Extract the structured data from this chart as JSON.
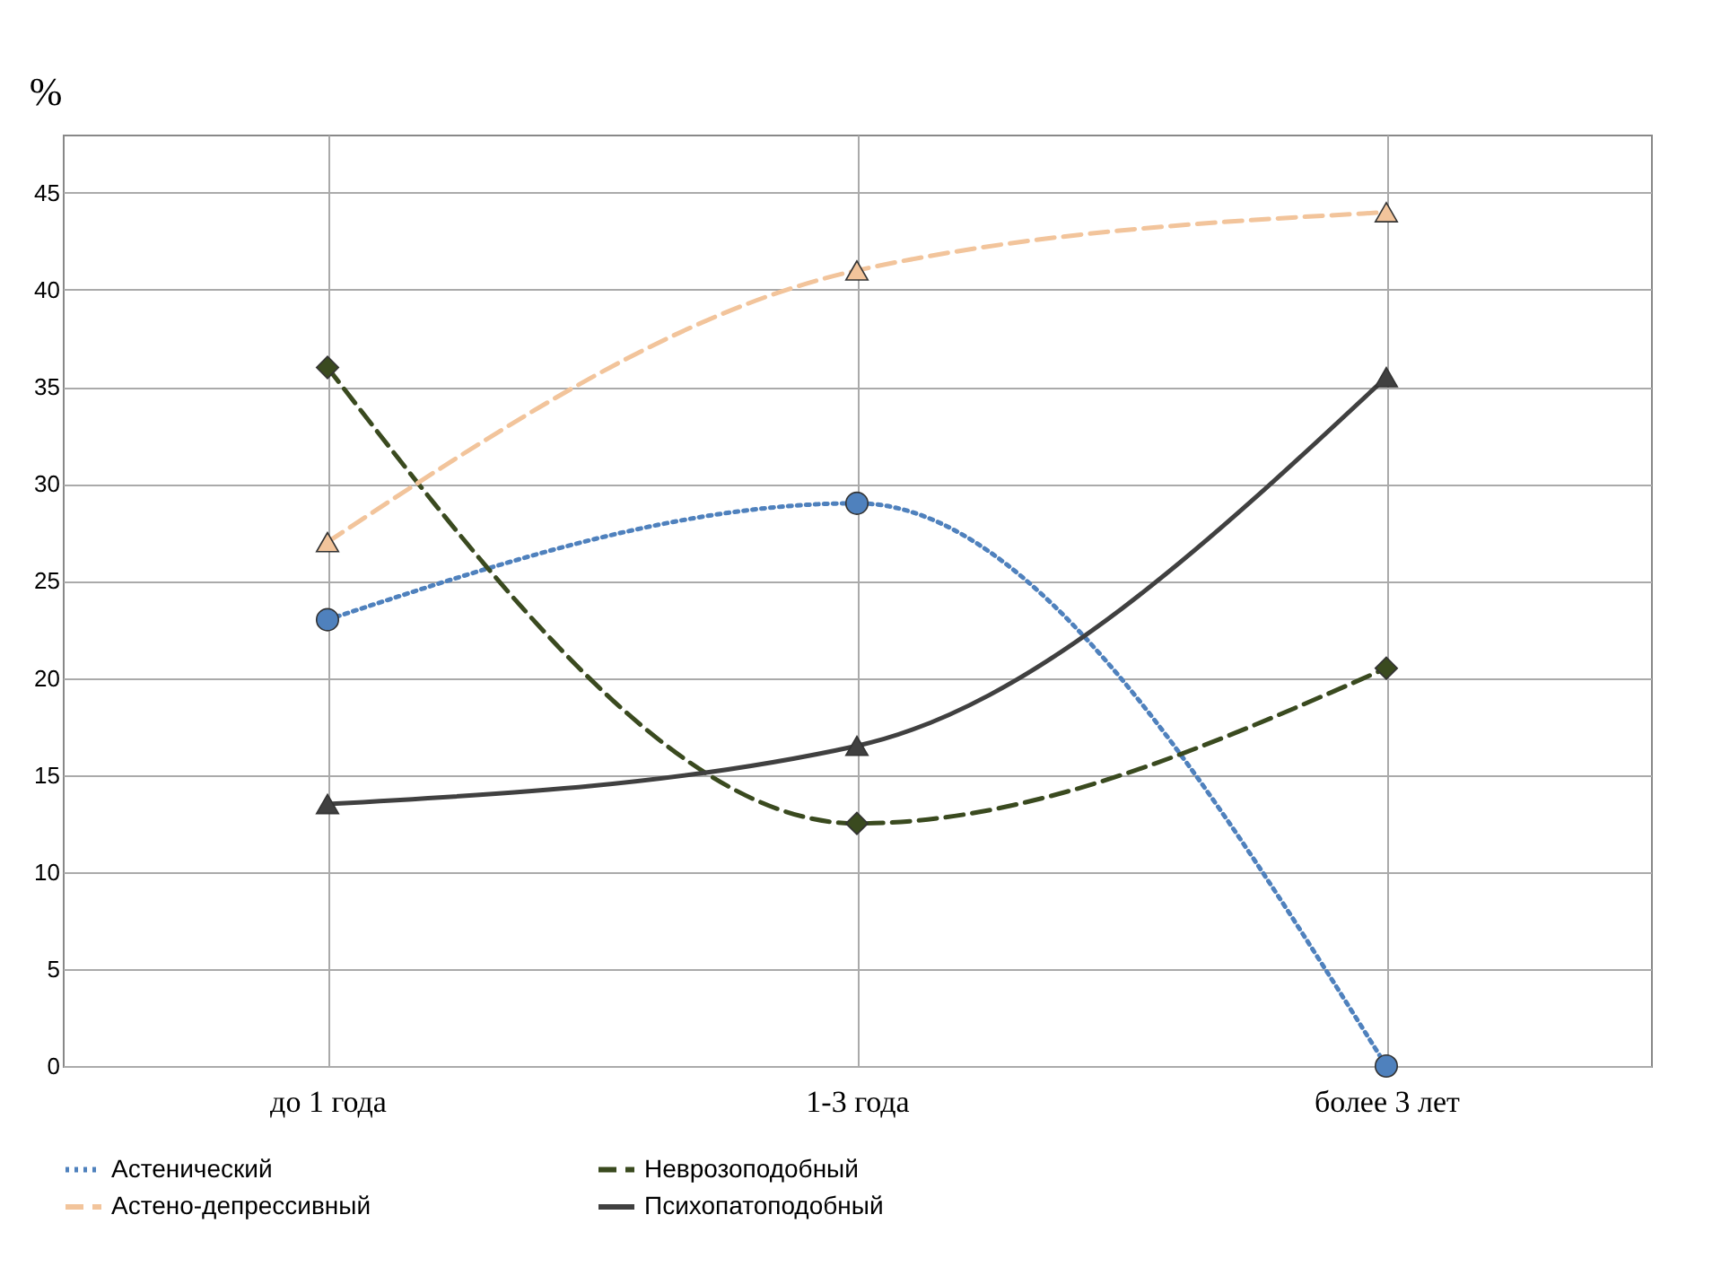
{
  "chart_data": {
    "type": "line",
    "ylabel": "%",
    "categories": [
      "до 1 года",
      "1-3 года",
      "более 3 лет"
    ],
    "ylim": [
      0,
      48
    ],
    "yticks": [
      0,
      5,
      10,
      15,
      20,
      25,
      30,
      35,
      40,
      45
    ],
    "grid": true,
    "legend": "bottom",
    "series": [
      {
        "name": "Астенический",
        "color": "#4f81bd",
        "values": [
          23,
          29,
          0
        ],
        "line_style": "dotted",
        "marker": "circle"
      },
      {
        "name": "Неврозоподобный",
        "color": "#3a4a1f",
        "values": [
          36,
          12.5,
          20.5
        ],
        "line_style": "dashed",
        "marker": "diamond"
      },
      {
        "name": "Астено-депрессивный",
        "color": "#f2c49b",
        "values": [
          27,
          41,
          44
        ],
        "line_style": "dashed",
        "marker": "triangle"
      },
      {
        "name": "Психопатоподобный",
        "color": "#404040",
        "values": [
          13.5,
          16.5,
          35.5
        ],
        "line_style": "solid",
        "marker": "triangle"
      }
    ]
  }
}
